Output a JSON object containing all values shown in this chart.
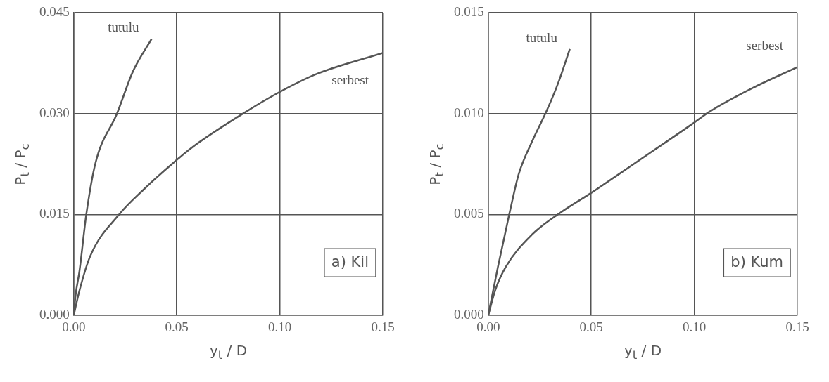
{
  "chart_data": [
    {
      "type": "line",
      "xlabel": "y$_{t}$ / D",
      "ylabel": "P$_{t}$ / P$_{c}$",
      "annotations": [
        "a) Kil"
      ],
      "grid": true,
      "legend": false,
      "marker": "none",
      "line_style": "solid",
      "xlim": [
        0,
        0.15
      ],
      "ylim": [
        0,
        0.045
      ],
      "xticks": [
        {
          "value": 0,
          "label": "0.00"
        },
        {
          "value": 0.05,
          "label": "0.05"
        },
        {
          "value": 0.1,
          "label": "0.10"
        },
        {
          "value": 0.15,
          "label": "0.15"
        }
      ],
      "yticks": [
        {
          "value": 0,
          "label": "0.000"
        },
        {
          "value": 0.015,
          "label": "0.015"
        },
        {
          "value": 0.03,
          "label": "0.030"
        },
        {
          "value": 0.045,
          "label": "0.045"
        }
      ],
      "series": [
        {
          "name": "tutulu",
          "color": "#555555",
          "x": [
            0,
            0.0009,
            0.0028,
            0.0061,
            0.0106,
            0.021,
            0.0288,
            0.0378
          ],
          "values": [
            0,
            0.003,
            0.0066,
            0.015,
            0.0227,
            0.03,
            0.0363,
            0.0411
          ]
        },
        {
          "name": "serbest",
          "color": "#555555",
          "x": [
            0,
            0.0028,
            0.008,
            0.0223,
            0.0339,
            0.0484,
            0.0598,
            0.0832,
            0.0987,
            0.118,
            0.15
          ],
          "values": [
            0,
            0.0037,
            0.0088,
            0.0151,
            0.0187,
            0.0227,
            0.0255,
            0.0302,
            0.033,
            0.0359,
            0.039
          ]
        }
      ]
    },
    {
      "type": "line",
      "xlabel": "y$_{t}$ / D",
      "ylabel": "P$_{t}$ / P$_{c}$",
      "annotations": [
        "b) Kum"
      ],
      "grid": true,
      "legend": false,
      "marker": "none",
      "line_style": "solid",
      "xlim": [
        0,
        0.15
      ],
      "ylim": [
        0,
        0.015
      ],
      "xticks": [
        {
          "value": 0,
          "label": "0.00"
        },
        {
          "value": 0.05,
          "label": "0.05"
        },
        {
          "value": 0.1,
          "label": "0.10"
        },
        {
          "value": 0.15,
          "label": "0.15"
        }
      ],
      "yticks": [
        {
          "value": 0,
          "label": "0.000"
        },
        {
          "value": 0.005,
          "label": "0.005"
        },
        {
          "value": 0.01,
          "label": "0.010"
        },
        {
          "value": 0.015,
          "label": "0.015"
        }
      ],
      "series": [
        {
          "name": "tutulu",
          "color": "#555555",
          "x": [
            0,
            0.0047,
            0.0104,
            0.0148,
            0.0212,
            0.0282,
            0.0339,
            0.0396
          ],
          "values": [
            0,
            0.0024,
            0.0051,
            0.007,
            0.0086,
            0.0101,
            0.0115,
            0.0132
          ]
        },
        {
          "name": "serbest",
          "color": "#555555",
          "x": [
            0,
            0.0034,
            0.0085,
            0.0212,
            0.0352,
            0.0504,
            0.072,
            0.0992,
            0.1075,
            0.129,
            0.15
          ],
          "values": [
            0,
            0.00125,
            0.0024,
            0.004,
            0.0051,
            0.0061,
            0.0076,
            0.0095,
            0.0101,
            0.0113,
            0.0123
          ]
        }
      ]
    }
  ]
}
